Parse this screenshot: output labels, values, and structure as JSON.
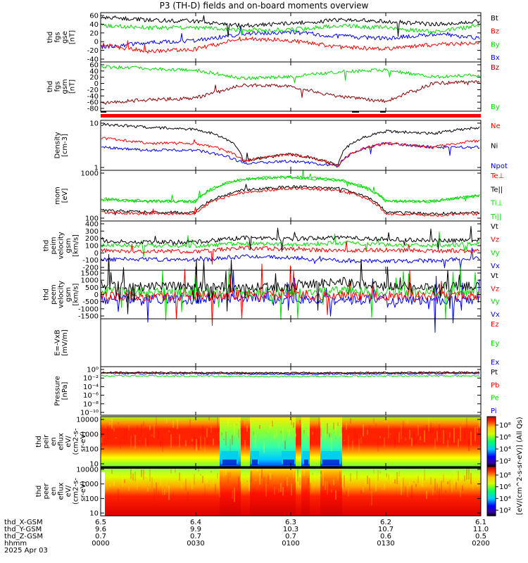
{
  "title": "P3 (TH-D) fields and on-board moments overview",
  "colors": {
    "black": "#000000",
    "red": "#ff0000",
    "green": "#00dd00",
    "blue": "#0000ff",
    "darkred": "#8b0000"
  },
  "panels": [
    {
      "id": "fgs_gse",
      "ylabel": [
        "thd",
        "fgs",
        "gse",
        "[nT]"
      ],
      "ticks": [
        "60",
        "40",
        "20",
        "0",
        "-20",
        "-40"
      ],
      "legend": [
        "Bt",
        "Bz",
        "By",
        "Bx"
      ],
      "legend_colors": [
        "black",
        "red",
        "green",
        "blue"
      ]
    },
    {
      "id": "fgs_gsm",
      "ylabel": [
        "thd",
        "fgs",
        "gsm",
        "[nT]"
      ],
      "ticks": [
        "60",
        "40",
        "20",
        "0",
        "-20",
        "-40",
        "-60",
        "-80"
      ],
      "legend": [
        "Bz",
        "By"
      ],
      "legend_colors": [
        "darkred",
        "green"
      ]
    },
    {
      "id": "density",
      "ylabel": [
        "Density",
        "[cm-3]"
      ],
      "ticks": [
        "10",
        "1"
      ],
      "legend": [
        "Ne",
        "Ni",
        "Npot"
      ],
      "legend_colors": [
        "red",
        "black",
        "blue"
      ]
    },
    {
      "id": "temperature",
      "ylabel": [
        "mom",
        "[eV]"
      ],
      "ticks": [
        "1000",
        "100"
      ],
      "legend": [
        "Te⊥",
        "Te||",
        "Ti⊥",
        "Ti||"
      ],
      "legend_colors": [
        "red",
        "black",
        "green",
        "green"
      ]
    },
    {
      "id": "peim_velocity",
      "ylabel": [
        "thd",
        "peim",
        "velocity",
        "gsm",
        "[km/s]"
      ],
      "ticks": [
        "400",
        "300",
        "200",
        "100",
        "0",
        "-100",
        "-200"
      ],
      "legend": [
        "Vt",
        "Vz",
        "Vy",
        "Vx"
      ],
      "legend_colors": [
        "black",
        "red",
        "green",
        "blue"
      ]
    },
    {
      "id": "peem_velocity",
      "ylabel": [
        "thd",
        "peem",
        "velocity",
        "gsm",
        "[km/s]"
      ],
      "ticks": [
        "1500",
        "1000",
        "500",
        "0",
        "-500",
        "-1000",
        "-1500"
      ],
      "legend": [
        "Vt",
        "Vz",
        "Vy",
        "Vx"
      ],
      "legend_colors": [
        "black",
        "red",
        "green",
        "blue"
      ]
    },
    {
      "id": "efield",
      "ylabel": [
        "E=-VxB",
        "[mV/m]"
      ],
      "ticks": [],
      "legend": [
        "Ez",
        "Ey",
        "Ex"
      ],
      "legend_colors": [
        "red",
        "green",
        "blue"
      ]
    },
    {
      "id": "pressure",
      "ylabel": [
        "Pressure",
        "[nPa]"
      ],
      "ticks": [
        "10⁰",
        "10⁻²",
        "10⁻⁴",
        "10⁻⁶",
        "10⁻⁸",
        "10⁻¹⁰"
      ],
      "legend": [
        "Pt",
        "Pb",
        "Pe",
        "Pi"
      ],
      "legend_colors": [
        "black",
        "red",
        "green",
        "blue"
      ]
    },
    {
      "id": "peir_eflux",
      "ylabel": [
        "thd",
        "peir",
        "en",
        "eflux",
        "eV/",
        "(cm2-s-",
        "sr-eV)"
      ],
      "ticks": [
        "10000",
        "1000",
        "100",
        "10"
      ],
      "legend": [],
      "legend_colors": []
    },
    {
      "id": "peer_eflux",
      "ylabel": [
        "thd",
        "peer",
        "en",
        "eflux",
        "eV/",
        "(cm2-s-",
        "sr-eV)"
      ],
      "ticks": [
        "10000",
        "1000",
        "100",
        "10"
      ],
      "legend": [],
      "legend_colors": []
    }
  ],
  "colorbar": {
    "ticks_top": [
      "10⁸",
      "10⁶",
      "10⁴",
      "10²"
    ],
    "ticks_bottom": [
      "10⁸",
      "10⁶",
      "10⁴",
      "10²"
    ],
    "label": "[eV/(cm^2-s-sr-eV)] (All Qs)"
  },
  "orbit": {
    "rows": [
      {
        "label": "thd_X-GSM",
        "values": [
          "6.5",
          "6.4",
          "6.3",
          "6.2",
          "6.1"
        ]
      },
      {
        "label": "thd_Y-GSM",
        "values": [
          "9.6",
          "9.9",
          "10.3",
          "10.7",
          "11.0"
        ]
      },
      {
        "label": "thd_Z-GSM",
        "values": [
          "0.7",
          "0.7",
          "0.7",
          "0.6",
          "0.5"
        ]
      },
      {
        "label": "hhmm",
        "values": [
          "0000",
          "0030",
          "0100",
          "0130",
          "0200"
        ]
      }
    ],
    "date": "2025 Apr 03"
  },
  "chart_data": {
    "type": "line",
    "title": "P3 (TH-D) fields and on-board moments overview",
    "x_axis": {
      "label": "hhmm",
      "ticks": [
        "0000",
        "0030",
        "0100",
        "0130",
        "0200"
      ]
    },
    "panels": [
      {
        "name": "thd fgs gse [nT]",
        "ylim": [
          -50,
          65
        ],
        "series": [
          {
            "name": "Bt",
            "color": "black",
            "times": [
              "0000",
              "0015",
              "0030",
              "0045",
              "0100",
              "0115",
              "0130",
              "0145",
              "0200"
            ],
            "values": [
              55,
              48,
              45,
              35,
              40,
              48,
              45,
              38,
              45
            ]
          },
          {
            "name": "Bz",
            "color": "red",
            "times": [
              "0000",
              "0015",
              "0030",
              "0045",
              "0100",
              "0115",
              "0130",
              "0145",
              "0200"
            ],
            "values": [
              -10,
              -25,
              -20,
              5,
              0,
              -15,
              -20,
              -10,
              -5
            ]
          },
          {
            "name": "By",
            "color": "green",
            "times": [
              "0000",
              "0015",
              "0030",
              "0045",
              "0100",
              "0115",
              "0130",
              "0145",
              "0200"
            ],
            "values": [
              35,
              30,
              30,
              25,
              25,
              35,
              30,
              20,
              35
            ]
          },
          {
            "name": "Bx",
            "color": "blue",
            "times": [
              "0000",
              "0015",
              "0030",
              "0045",
              "0100",
              "0115",
              "0130",
              "0145",
              "0200"
            ],
            "values": [
              -15,
              -5,
              0,
              15,
              20,
              10,
              5,
              15,
              5
            ]
          }
        ]
      },
      {
        "name": "thd fgs gsm [nT]",
        "ylim": [
          -90,
          60
        ],
        "series": [
          {
            "name": "Bz",
            "color": "darkred",
            "times": [
              "0000",
              "0015",
              "0030",
              "0045",
              "0100",
              "0115",
              "0130",
              "0145",
              "0200"
            ],
            "values": [
              -65,
              -55,
              -50,
              -10,
              -15,
              -45,
              -60,
              -5,
              0
            ]
          },
          {
            "name": "By",
            "color": "green",
            "times": [
              "0000",
              "0015",
              "0030",
              "0045",
              "0100",
              "0115",
              "0130",
              "0145",
              "0200"
            ],
            "values": [
              45,
              40,
              35,
              10,
              15,
              30,
              35,
              15,
              20
            ]
          }
        ]
      },
      {
        "name": "Density [cm-3]",
        "log": true,
        "ylim": [
          0.2,
          30
        ],
        "series": [
          {
            "name": "Ne",
            "color": "red",
            "times": [
              "0000",
              "0015",
              "0030",
              "0045",
              "0100",
              "0115",
              "0130",
              "0145",
              "0200"
            ],
            "values": [
              5,
              3,
              3,
              0.5,
              1,
              0.3,
              3,
              2,
              4
            ]
          },
          {
            "name": "Ni",
            "color": "black",
            "times": [
              "0000",
              "0015",
              "0030",
              "0045",
              "0100",
              "0115",
              "0130",
              "0145",
              "0200"
            ],
            "values": [
              20,
              15,
              12,
              0.5,
              1,
              0.3,
              10,
              8,
              15
            ]
          },
          {
            "name": "Npot",
            "color": "blue",
            "times": [
              "0000",
              "0015",
              "0030",
              "0045",
              "0100",
              "0115",
              "0130",
              "0145",
              "0200"
            ],
            "values": [
              2,
              1.5,
              1.5,
              0.4,
              0.5,
              0.3,
              3,
              2,
              2
            ]
          }
        ]
      },
      {
        "name": "mom [eV]",
        "log": true,
        "ylim": [
          50,
          3000
        ],
        "series": [
          {
            "name": "Te⊥",
            "color": "red",
            "times": [
              "0000",
              "0015",
              "0030",
              "0045",
              "0100",
              "0115",
              "0130",
              "0145",
              "0200"
            ],
            "values": [
              100,
              90,
              90,
              500,
              700,
              600,
              90,
              80,
              90
            ]
          },
          {
            "name": "Te||",
            "color": "black",
            "times": [
              "0000",
              "0015",
              "0030",
              "0045",
              "0100",
              "0115",
              "0130",
              "0145",
              "0200"
            ],
            "values": [
              120,
              100,
              100,
              600,
              800,
              700,
              100,
              90,
              100
            ]
          },
          {
            "name": "Ti⊥",
            "color": "green",
            "times": [
              "0000",
              "0015",
              "0030",
              "0045",
              "0100",
              "0115",
              "0130",
              "0145",
              "0200"
            ],
            "values": [
              300,
              250,
              250,
              1500,
              1800,
              1400,
              250,
              250,
              400
            ]
          },
          {
            "name": "Ti||",
            "color": "green",
            "times": [
              "0000",
              "0015",
              "0030",
              "0045",
              "0100",
              "0115",
              "0130",
              "0145",
              "0200"
            ],
            "values": [
              280,
              240,
              240,
              1400,
              1700,
              1300,
              240,
              240,
              380
            ]
          }
        ]
      },
      {
        "name": "thd peim velocity gsm [km/s]",
        "ylim": [
          -250,
          430
        ],
        "series": [
          {
            "name": "Vt",
            "color": "black",
            "times": [
              "0000",
              "0015",
              "0030",
              "0045",
              "0100",
              "0115",
              "0130",
              "0145",
              "0200"
            ],
            "values": [
              150,
              140,
              140,
              200,
              180,
              200,
              180,
              160,
              170
            ]
          },
          {
            "name": "Vz",
            "color": "red",
            "times": [
              "0000",
              "0015",
              "0030",
              "0045",
              "0100",
              "0115",
              "0130",
              "0145",
              "0200"
            ],
            "values": [
              20,
              10,
              10,
              60,
              40,
              20,
              30,
              20,
              20
            ]
          },
          {
            "name": "Vy",
            "color": "green",
            "times": [
              "0000",
              "0015",
              "0030",
              "0045",
              "0100",
              "0115",
              "0130",
              "0145",
              "0200"
            ],
            "values": [
              100,
              90,
              90,
              120,
              100,
              130,
              100,
              90,
              120
            ]
          },
          {
            "name": "Vx",
            "color": "blue",
            "times": [
              "0000",
              "0015",
              "0030",
              "0045",
              "0100",
              "0115",
              "0130",
              "0145",
              "0200"
            ],
            "values": [
              -100,
              -100,
              -110,
              -60,
              -80,
              -120,
              -120,
              -120,
              -80
            ]
          }
        ]
      },
      {
        "name": "thd peem velocity gsm [km/s]",
        "ylim": [
          -1500,
          1500
        ],
        "series": [
          {
            "name": "Vt",
            "color": "black",
            "times": [
              "0000",
              "0015",
              "0030",
              "0045",
              "0100",
              "0115",
              "0130",
              "0145",
              "0200"
            ],
            "values": [
              600,
              500,
              500,
              400,
              500,
              800,
              500,
              500,
              500
            ]
          },
          {
            "name": "Vz",
            "color": "red",
            "times": [
              "0000",
              "0015",
              "0030",
              "0045",
              "0100",
              "0115",
              "0130",
              "0145",
              "0200"
            ],
            "values": [
              -100,
              -100,
              -100,
              0,
              0,
              -100,
              -100,
              -100,
              -100
            ]
          },
          {
            "name": "Vy",
            "color": "green",
            "times": [
              "0000",
              "0015",
              "0030",
              "0045",
              "0100",
              "0115",
              "0130",
              "0145",
              "0200"
            ],
            "values": [
              200,
              150,
              150,
              100,
              150,
              200,
              150,
              150,
              150
            ]
          },
          {
            "name": "Vx",
            "color": "blue",
            "times": [
              "0000",
              "0015",
              "0030",
              "0045",
              "0100",
              "0115",
              "0130",
              "0145",
              "0200"
            ],
            "values": [
              -300,
              -300,
              -300,
              -200,
              -300,
              -400,
              -300,
              -400,
              -300
            ]
          }
        ]
      },
      {
        "name": "E=-VxB [mV/m]",
        "series": []
      },
      {
        "name": "Pressure [nPa]",
        "log": true,
        "ylim": [
          1e-11,
          1
        ],
        "series": [
          {
            "name": "Pt",
            "color": "black",
            "times": [
              "0000",
              "0100",
              "0200"
            ],
            "values": [
              0.05,
              0.04,
              0.05
            ]
          },
          {
            "name": "Pb",
            "color": "red",
            "times": [
              "0000",
              "0100",
              "0200"
            ],
            "values": [
              0.04,
              0.03,
              0.04
            ]
          },
          {
            "name": "Pe",
            "color": "green",
            "times": [
              "0000",
              "0100",
              "0200"
            ],
            "values": [
              0.008,
              0.006,
              0.008
            ]
          },
          {
            "name": "Pi",
            "color": "blue",
            "times": [
              "0000",
              "0100",
              "0200"
            ],
            "values": [
              0.03,
              0.02,
              0.03
            ]
          }
        ]
      }
    ],
    "spectrograms": [
      {
        "name": "thd peir en eflux",
        "type": "heatmap",
        "ylim": [
          5,
          20000
        ],
        "log": true
      },
      {
        "name": "thd peer en eflux",
        "type": "heatmap",
        "ylim": [
          5,
          20000
        ],
        "log": true
      }
    ]
  }
}
